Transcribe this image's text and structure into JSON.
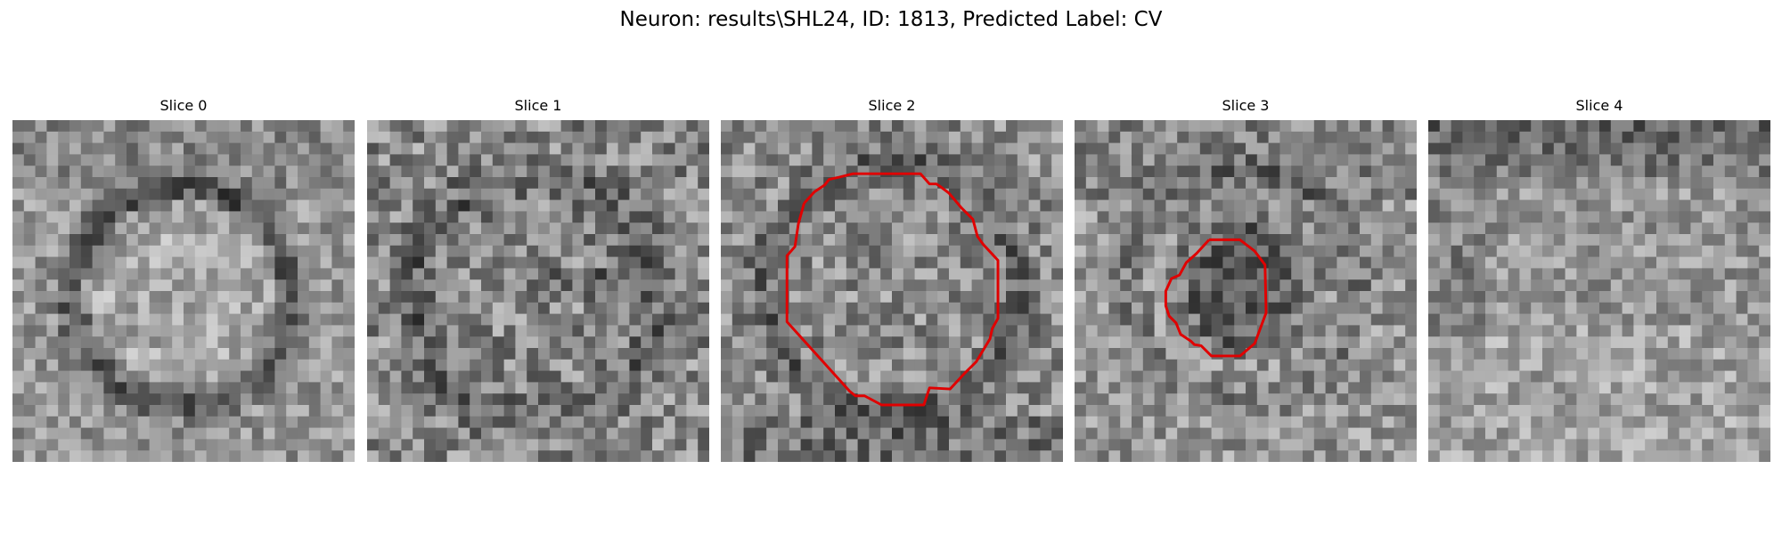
{
  "figure": {
    "title": "Neuron: results\\SHL24, ID: 1813, Predicted Label: CV"
  },
  "colors": {
    "background": "#ffffff",
    "contour": "#e00000",
    "colormap": "grayscale"
  },
  "slices": [
    {
      "label": "Slice 0",
      "icon": "grayscale-em-patch",
      "has_contour": false
    },
    {
      "label": "Slice 1",
      "icon": "grayscale-em-patch",
      "has_contour": false
    },
    {
      "label": "Slice 2",
      "icon": "grayscale-em-patch",
      "has_contour": true
    },
    {
      "label": "Slice 3",
      "icon": "grayscale-em-patch",
      "has_contour": true
    },
    {
      "label": "Slice 4",
      "icon": "grayscale-em-patch",
      "has_contour": false
    }
  ]
}
